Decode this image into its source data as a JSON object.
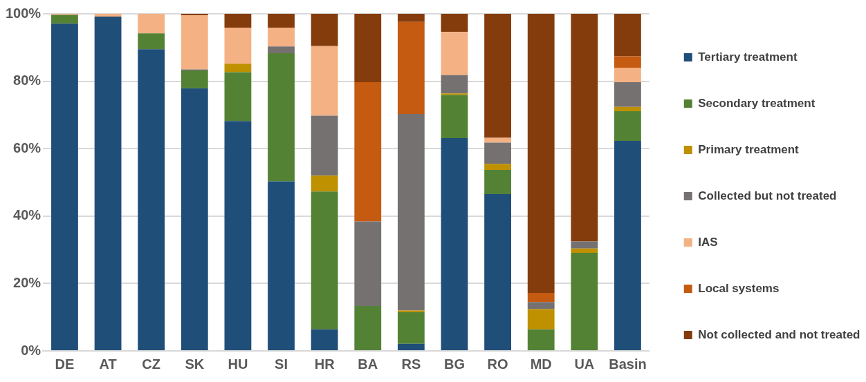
{
  "chart_data": {
    "type": "bar",
    "stacked": true,
    "categories": [
      "DE",
      "AT",
      "CZ",
      "SK",
      "HU",
      "SI",
      "HR",
      "BA",
      "RS",
      "BG",
      "RO",
      "MD",
      "UA",
      "Basin"
    ],
    "series": [
      {
        "name": "Tertiary treatment",
        "color": "#1f4e79",
        "values": [
          97.1,
          99.2,
          89.5,
          77.9,
          68.2,
          50.3,
          6.4,
          0,
          2.1,
          63.1,
          46.5,
          0,
          0,
          62.3
        ]
      },
      {
        "name": "Secondary treatment",
        "color": "#548235",
        "values": [
          2.6,
          0,
          4.7,
          5.3,
          14.5,
          38.0,
          40.9,
          13.3,
          9.4,
          12.8,
          7.2,
          6.4,
          29.1,
          8.8
        ]
      },
      {
        "name": "Primary treatment",
        "color": "#bf9000",
        "values": [
          0,
          0,
          0,
          0,
          2.5,
          0,
          4.7,
          0,
          0.5,
          0.5,
          1.8,
          6.0,
          1.3,
          1.3
        ]
      },
      {
        "name": "Collected but not treated",
        "color": "#767171",
        "values": [
          0,
          0,
          0,
          0.3,
          0,
          2.0,
          17.8,
          25.1,
          58.3,
          5.4,
          6.3,
          2.1,
          2.1,
          7.3
        ]
      },
      {
        "name": "IAS",
        "color": "#f4b183",
        "values": [
          0.3,
          0.8,
          5.8,
          16.1,
          10.7,
          5.6,
          20.6,
          0,
          0,
          12.8,
          1.4,
          0,
          0,
          4.3
        ]
      },
      {
        "name": "Local systems",
        "color": "#c55a11",
        "values": [
          0,
          0,
          0,
          0,
          0,
          0,
          0,
          41.3,
          27.3,
          0,
          0,
          2.7,
          0,
          3.4
        ]
      },
      {
        "name": "Not collected and not treated",
        "color": "#843c0c",
        "values": [
          0,
          0,
          0,
          0.7,
          4.1,
          4.1,
          9.6,
          20.3,
          2.4,
          5.4,
          36.8,
          82.8,
          67.5,
          12.6
        ]
      }
    ],
    "ylim": [
      0,
      100
    ],
    "yticks": [
      {
        "value": 0,
        "label": "0%"
      },
      {
        "value": 20,
        "label": "20%"
      },
      {
        "value": 40,
        "label": "40%"
      },
      {
        "value": 60,
        "label": "60%"
      },
      {
        "value": 80,
        "label": "80%"
      },
      {
        "value": 100,
        "label": "100%"
      }
    ],
    "grid": "y",
    "legend": "right"
  }
}
